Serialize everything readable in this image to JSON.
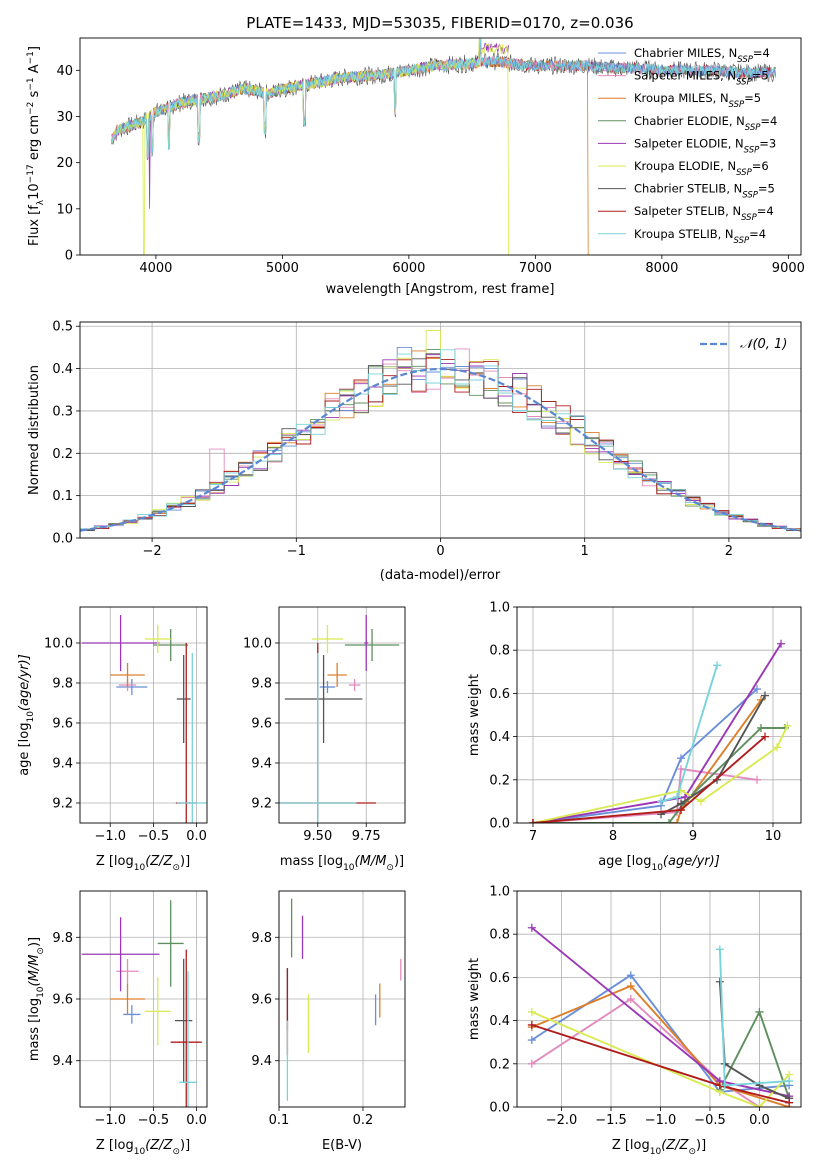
{
  "figure_title": "PLATE=1433, MJD=53035, FIBERID=0170, z=0.036",
  "legend_labels": [
    [
      "Chabrier MILES, N",
      "SSP",
      "=4"
    ],
    [
      "Salpeter MILES, N",
      "SSP",
      "=5"
    ],
    [
      "Kroupa MILES, N",
      "SSP",
      "=5"
    ],
    [
      "Chabrier ELODIE, N",
      "SSP",
      "=4"
    ],
    [
      "Salpeter ELODIE, N",
      "SSP",
      "=3"
    ],
    [
      "Kroupa ELODIE, N",
      "SSP",
      "=6"
    ],
    [
      "Chabrier STELIB, N",
      "SSP",
      "=5"
    ],
    [
      "Salpeter STELIB, N",
      "SSP",
      "=4"
    ],
    [
      "Kroupa STELIB, N",
      "SSP",
      "=4"
    ]
  ],
  "colors": [
    "#6a8fd8",
    "#e38bbd",
    "#dd7f2a",
    "#5f8f5f",
    "#9a38b5",
    "#d9ea52",
    "#555555",
    "#b01c1c",
    "#78d3dc"
  ],
  "chart_data": [
    {
      "id": "spectrum",
      "type": "line",
      "xlabel": "wavelength [Angstrom, rest frame]",
      "ylabel_parts": [
        "Flux [f",
        "λ",
        "10",
        "−17",
        " erg cm",
        "−2",
        " s",
        "−1",
        " A",
        "−1",
        "]"
      ],
      "xlim": [
        3400,
        9100
      ],
      "ylim": [
        0,
        47
      ],
      "xticks": [
        4000,
        5000,
        6000,
        7000,
        8000,
        9000
      ],
      "yticks": [
        0,
        10,
        20,
        30,
        40
      ],
      "continuum_x": [
        3650,
        3700,
        3800,
        3900,
        4000,
        4100,
        4200,
        4300,
        4500,
        4700,
        4900,
        5000,
        5200,
        5500,
        5800,
        6000,
        6200,
        6500,
        6700,
        6800,
        7000,
        7200,
        7400,
        7600,
        7800,
        8000,
        8200,
        8400,
        8600,
        8800
      ],
      "continuum_y": [
        25,
        27,
        28,
        29,
        31,
        32,
        33,
        33.5,
        34.5,
        36,
        35,
        36,
        37,
        38.5,
        39,
        40,
        41,
        41.5,
        42,
        41.5,
        41,
        41,
        41,
        40.5,
        40.5,
        40,
        40,
        40,
        39.5,
        39.5
      ],
      "dropouts": [
        {
          "series": 5,
          "x": 3905,
          "to": 0
        },
        {
          "series": 4,
          "x": 3950,
          "to": 10
        },
        {
          "series": 5,
          "x": 6790,
          "to": 0
        },
        {
          "series": 2,
          "x": 7420,
          "to": 0
        }
      ],
      "absorption": [
        3935,
        3970,
        4102,
        4340,
        4861,
        5175,
        5890,
        6563
      ]
    },
    {
      "id": "residuals",
      "type": "histogram",
      "xlabel": "(data-model)/error",
      "ylabel": "Normed distribution",
      "xlim": [
        -2.5,
        2.5
      ],
      "ylim": [
        0,
        0.51
      ],
      "xticks": [
        -2,
        -1,
        0,
        1,
        2
      ],
      "yticks": [
        0,
        0.1,
        0.2,
        0.3,
        0.4,
        0.5
      ],
      "bin_width": 0.1,
      "legend": "𝒩(0, 1)",
      "peaks": [
        {
          "series": 5,
          "x": -0.05,
          "y": 0.49
        },
        {
          "series": 0,
          "x": -0.25,
          "y": 0.45
        },
        {
          "series": 1,
          "x": -1.55,
          "y": 0.21
        }
      ]
    },
    {
      "id": "age_vs_Z",
      "type": "errorbar",
      "xlabel_parts": [
        "Z [log",
        "10",
        "(Z/Z",
        "⊙",
        ")]"
      ],
      "ylabel_parts": [
        "age  [log",
        "10",
        "(age/yr)]"
      ],
      "xlim": [
        -1.35,
        0.12
      ],
      "ylim": [
        9.1,
        10.18
      ],
      "xticks": [
        -1.0,
        -0.5,
        0.0
      ],
      "yticks": [
        9.2,
        9.4,
        9.6,
        9.8,
        10.0
      ],
      "points": [
        {
          "s": 0,
          "x": -0.75,
          "y": 9.78,
          "xe": 0.18,
          "ye": 0.04
        },
        {
          "s": 1,
          "x": -0.8,
          "y": 9.79,
          "xe": 0.1,
          "ye": 0.03
        },
        {
          "s": 2,
          "x": -0.8,
          "y": 9.84,
          "xe": 0.2,
          "ye": 0.06
        },
        {
          "s": 3,
          "x": -0.3,
          "y": 9.99,
          "xe": 0.2,
          "ye": 0.08
        },
        {
          "s": 4,
          "x": -0.88,
          "y": 10.0,
          "xe": 0.45,
          "ye": 0.14
        },
        {
          "s": 5,
          "x": -0.45,
          "y": 10.02,
          "xe": 0.15,
          "ye": 0.07
        },
        {
          "s": 6,
          "x": -0.15,
          "y": 9.72,
          "xe": 0.08,
          "ye": 0.22
        },
        {
          "s": 7,
          "x": -0.12,
          "y": 9.2,
          "xe": 0.12,
          "ye": 0.8
        },
        {
          "s": 8,
          "x": -0.05,
          "y": 9.2,
          "xe": 0.18,
          "ye": 0.75
        }
      ]
    },
    {
      "id": "age_vs_mass",
      "type": "errorbar",
      "xlabel_parts": [
        "mass [log",
        "10",
        "(M/M",
        "⊙",
        ")]"
      ],
      "xlim": [
        9.3,
        9.95
      ],
      "ylim": [
        9.1,
        10.18
      ],
      "xticks": [
        9.5,
        9.75
      ],
      "xtick_labels": [
        "9.50",
        "9.75"
      ],
      "yticks": [
        9.2,
        9.4,
        9.6,
        9.8,
        10.0
      ],
      "points": [
        {
          "s": 0,
          "x": 9.55,
          "y": 9.78,
          "xe": 0.04,
          "ye": 0.03
        },
        {
          "s": 1,
          "x": 9.69,
          "y": 9.79,
          "xe": 0.03,
          "ye": 0.03
        },
        {
          "s": 2,
          "x": 9.6,
          "y": 9.84,
          "xe": 0.05,
          "ye": 0.06
        },
        {
          "s": 3,
          "x": 9.78,
          "y": 9.99,
          "xe": 0.14,
          "ye": 0.08
        },
        {
          "s": 4,
          "x": 9.75,
          "y": 10.0,
          "xe": 0.01,
          "ye": 0.14
        },
        {
          "s": 5,
          "x": 9.55,
          "y": 10.02,
          "xe": 0.08,
          "ye": 0.07
        },
        {
          "s": 6,
          "x": 9.53,
          "y": 9.72,
          "xe": 0.2,
          "ye": 0.22
        },
        {
          "s": 7,
          "x": 9.5,
          "y": 9.2,
          "xe": 0.3,
          "ye": 0.8
        },
        {
          "s": 8,
          "x": 9.5,
          "y": 9.2,
          "xe": 0.2,
          "ye": 0.75
        }
      ]
    },
    {
      "id": "weight_vs_age",
      "type": "line",
      "xlabel_parts": [
        "age  [log",
        "10",
        "(age/yr)]"
      ],
      "ylabel": "mass weight",
      "xlim": [
        6.8,
        10.35
      ],
      "ylim": [
        0,
        1
      ],
      "xticks": [
        7,
        8,
        9,
        10
      ],
      "yticks": [
        0,
        0.2,
        0.4,
        0.6,
        0.8,
        1.0
      ],
      "series": [
        {
          "s": 0,
          "x": [
            7.0,
            8.6,
            8.85,
            9.8
          ],
          "y": [
            0.0,
            0.08,
            0.3,
            0.62
          ]
        },
        {
          "s": 1,
          "x": [
            7.0,
            8.8,
            8.85,
            9.8
          ],
          "y": [
            0.0,
            0.05,
            0.25,
            0.2
          ]
        },
        {
          "s": 2,
          "x": [
            7.0,
            8.8,
            8.85,
            9.85
          ],
          "y": [
            0.0,
            0.0,
            0.06,
            0.57
          ]
        },
        {
          "s": 3,
          "x": [
            7.0,
            8.7,
            8.9,
            9.85,
            10.15
          ],
          "y": [
            0.0,
            0.0,
            0.1,
            0.44,
            0.44
          ]
        },
        {
          "s": 4,
          "x": [
            7.0,
            8.9,
            10.1
          ],
          "y": [
            0.0,
            0.12,
            0.83
          ]
        },
        {
          "s": 5,
          "x": [
            7.0,
            8.85,
            9.1,
            10.05,
            10.18
          ],
          "y": [
            0.0,
            0.15,
            0.1,
            0.35,
            0.45
          ]
        },
        {
          "s": 6,
          "x": [
            8.6,
            8.85,
            9.3,
            9.9
          ],
          "y": [
            0.04,
            0.09,
            0.2,
            0.59
          ]
        },
        {
          "s": 7,
          "x": [
            7.0,
            8.85,
            9.9
          ],
          "y": [
            0.0,
            0.06,
            0.4
          ]
        },
        {
          "s": 8,
          "x": [
            8.6,
            8.8,
            9.3
          ],
          "y": [
            0.1,
            0.12,
            0.73
          ]
        }
      ]
    },
    {
      "id": "mass_vs_Z",
      "type": "errorbar",
      "xlabel_parts": [
        "Z [log",
        "10",
        "(Z/Z",
        "⊙",
        ")]"
      ],
      "ylabel_parts": [
        "mass [log",
        "10",
        "(M/M",
        "⊙",
        ")]"
      ],
      "xlim": [
        -1.35,
        0.12
      ],
      "ylim": [
        9.25,
        9.95
      ],
      "xticks": [
        -1.0,
        -0.5,
        0.0
      ],
      "yticks": [
        9.4,
        9.6,
        9.8
      ],
      "points": [
        {
          "s": 0,
          "x": -0.75,
          "y": 9.55,
          "xe": 0.1,
          "ye": 0.03
        },
        {
          "s": 1,
          "x": -0.8,
          "y": 9.69,
          "xe": 0.13,
          "ye": 0.04
        },
        {
          "s": 2,
          "x": -0.8,
          "y": 9.6,
          "xe": 0.2,
          "ye": 0.05
        },
        {
          "s": 3,
          "x": -0.3,
          "y": 9.78,
          "xe": 0.15,
          "ye": 0.14
        },
        {
          "s": 4,
          "x": -0.88,
          "y": 9.745,
          "xe": 0.45,
          "ye": 0.12
        },
        {
          "s": 5,
          "x": -0.45,
          "y": 9.56,
          "xe": 0.15,
          "ye": 0.11
        },
        {
          "s": 6,
          "x": -0.15,
          "y": 9.53,
          "xe": 0.1,
          "ye": 0.2
        },
        {
          "s": 7,
          "x": -0.12,
          "y": 9.46,
          "xe": 0.18,
          "ye": 0.3
        },
        {
          "s": 8,
          "x": -0.1,
          "y": 9.33,
          "xe": 0.1,
          "ye": 0.36
        }
      ]
    },
    {
      "id": "mass_vs_ebv",
      "type": "errorbar",
      "xlabel": "E(B-V)",
      "xlim": [
        0.1,
        0.25
      ],
      "ylim": [
        9.25,
        9.95
      ],
      "xticks": [
        0.1,
        0.2
      ],
      "xtick_labels": [
        "0.1",
        "0.2"
      ],
      "yticks": [
        9.4,
        9.6,
        9.8
      ],
      "points": [
        {
          "s": 0,
          "x": 0.215,
          "y": 9.565,
          "xe": 0,
          "ye": 0.05
        },
        {
          "s": 1,
          "x": 0.245,
          "y": 9.695,
          "xe": 0,
          "ye": 0.035
        },
        {
          "s": 2,
          "x": 0.22,
          "y": 9.595,
          "xe": 0,
          "ye": 0.055
        },
        {
          "s": 3,
          "x": 0.115,
          "y": 9.83,
          "xe": 0,
          "ye": 0.095
        },
        {
          "s": 4,
          "x": 0.128,
          "y": 9.8,
          "xe": 0,
          "ye": 0.07
        },
        {
          "s": 5,
          "x": 0.135,
          "y": 9.52,
          "xe": 0,
          "ye": 0.095
        },
        {
          "s": 6,
          "x": 0.11,
          "y": 9.6,
          "xe": 0,
          "ye": 0.1
        },
        {
          "s": 7,
          "x": 0.11,
          "y": 9.56,
          "xe": 0,
          "ye": 0.14
        },
        {
          "s": 8,
          "x": 0.11,
          "y": 9.4,
          "xe": 0,
          "ye": 0.13
        }
      ]
    },
    {
      "id": "weight_vs_Z",
      "type": "line",
      "xlabel_parts": [
        "Z [log",
        "10",
        "(Z/Z",
        "⊙",
        ")]"
      ],
      "ylabel": "mass weight",
      "xlim": [
        -2.45,
        0.42
      ],
      "ylim": [
        0,
        1
      ],
      "xticks": [
        -2.0,
        -1.5,
        -1.0,
        -0.5,
        0.0
      ],
      "yticks": [
        0,
        0.2,
        0.4,
        0.6,
        0.8,
        1.0
      ],
      "series": [
        {
          "s": 0,
          "x": [
            -2.3,
            -1.3,
            -0.4,
            0.3
          ],
          "y": [
            0.31,
            0.61,
            0.07,
            0.1
          ]
        },
        {
          "s": 1,
          "x": [
            -2.3,
            -1.3,
            -0.4,
            0.0
          ],
          "y": [
            0.2,
            0.5,
            0.12,
            0.0
          ]
        },
        {
          "s": 2,
          "x": [
            -2.3,
            -1.3,
            -0.4,
            0.3
          ],
          "y": [
            0.37,
            0.56,
            0.1,
            0.0
          ]
        },
        {
          "s": 3,
          "x": [
            -0.4,
            0.0,
            0.3
          ],
          "y": [
            0.08,
            0.44,
            0.04
          ]
        },
        {
          "s": 4,
          "x": [
            -2.3,
            -0.4,
            0.3
          ],
          "y": [
            0.83,
            0.12,
            0.05
          ]
        },
        {
          "s": 5,
          "x": [
            -2.3,
            -0.4,
            0.0,
            0.3
          ],
          "y": [
            0.44,
            0.07,
            0.0,
            0.15
          ]
        },
        {
          "s": 6,
          "x": [
            -0.4,
            -0.35,
            0.0,
            0.3
          ],
          "y": [
            0.58,
            0.2,
            0.1,
            0.04
          ]
        },
        {
          "s": 7,
          "x": [
            -2.3,
            -0.4,
            0.3
          ],
          "y": [
            0.38,
            0.1,
            0.02
          ]
        },
        {
          "s": 8,
          "x": [
            -0.4,
            -0.35,
            0.3
          ],
          "y": [
            0.73,
            0.1,
            0.12
          ]
        }
      ]
    }
  ]
}
